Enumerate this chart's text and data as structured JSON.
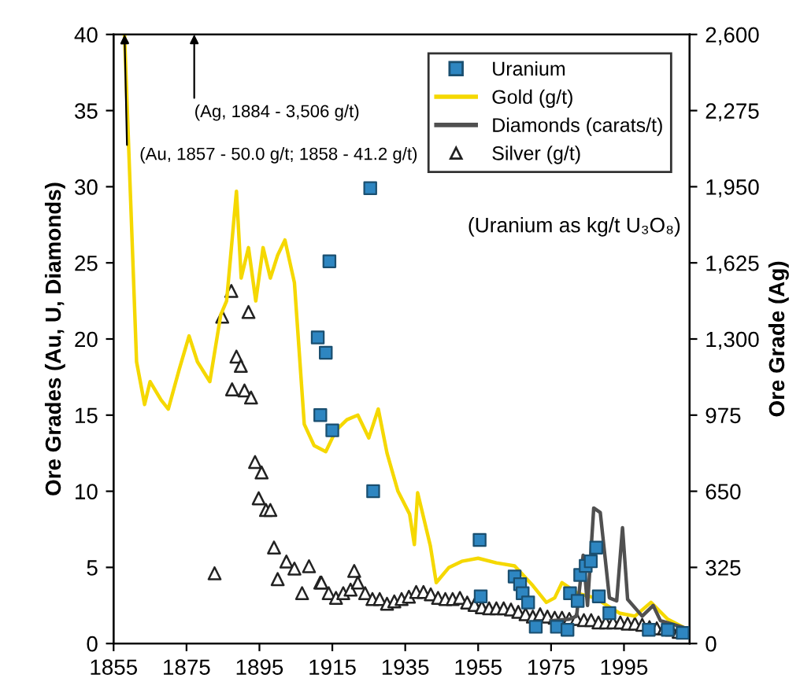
{
  "chart_data": {
    "type": "line",
    "xlabel": null,
    "ylabel": "Ore Grades (Au, U, Diamonds)",
    "y2label": "Ore Grade (Ag)",
    "xlim": [
      1855,
      2013
    ],
    "xticks": [
      1855,
      1875,
      1895,
      1915,
      1935,
      1955,
      1975,
      1995
    ],
    "ylim": [
      0,
      40
    ],
    "yticks": [
      0,
      5,
      10,
      15,
      20,
      25,
      30,
      35,
      40
    ],
    "y2lim": [
      0,
      2600
    ],
    "y2ticks": [
      0,
      {
        "value": 325,
        "label": "325"
      },
      {
        "value": 650,
        "label": "650"
      },
      {
        "value": 975,
        "label": "975"
      },
      {
        "value": 1300,
        "label": "1,300"
      },
      {
        "value": 1625,
        "label": "1,625"
      },
      {
        "value": 1950,
        "label": "1,950"
      },
      {
        "value": 2275,
        "label": "2,275"
      },
      {
        "value": 2600,
        "label": "2,600"
      }
    ],
    "legend": "top right",
    "grid": false,
    "annotations": [
      "(Ag, 1884 - 3,506 g/t)",
      {
        "text": "(Au, 1857 - 50.0 g/t; 1858 - 41.2 g/t)",
        "x": 1858,
        "y": 40
      },
      "(Uranium as kg/t U₃O₈)"
    ],
    "series": [
      {
        "name": "Uranium",
        "type": "scatter",
        "marker": "square",
        "color": "#2e86c1",
        "x": [
          1925.4,
          1914.2,
          1911,
          1913.2,
          1911.7,
          1915,
          1926.2,
          1955.4,
          1955.7,
          1965,
          1966.5,
          1967.2,
          1968.7,
          1970.8,
          1976.6,
          1979.5,
          1980.2,
          1982.3,
          1983,
          1984.5,
          1985.9,
          1987.4,
          1988.1,
          1991,
          2001.8,
          2007,
          2011.1
        ],
        "values": [
          29.9,
          25.1,
          20.1,
          19.1,
          15.0,
          14.0,
          10.0,
          6.8,
          3.1,
          4.4,
          3.9,
          3.3,
          2.7,
          1.1,
          1.1,
          0.9,
          3.3,
          2.8,
          4.5,
          5.1,
          5.4,
          6.3,
          3.1,
          2.0,
          0.9,
          0.9,
          0.7
        ]
      },
      {
        "name": "Gold (g/t)",
        "color": "#f5d800",
        "x": [
          1858,
          1861.3,
          1863.5,
          1865,
          1868,
          1870,
          1873,
          1875.7,
          1878,
          1881.4,
          1884.4,
          1886,
          1888.7,
          1890,
          1892,
          1894,
          1896,
          1898,
          1900,
          1902,
          1904.6,
          1907.3,
          1910,
          1913.2,
          1916,
          1919,
          1922,
          1925,
          1927.6,
          1930,
          1933,
          1936.2,
          1937.5,
          1938.4,
          1941.9,
          1943.5,
          1947,
          1950.5,
          1955,
          1960,
          1965,
          1970,
          1973.7,
          1976,
          1978,
          1982.3,
          1987,
          1993.7,
          1998,
          2002.4,
          2007,
          2012.6
        ],
        "values": [
          40,
          18.5,
          15.7,
          17.2,
          16.0,
          15.4,
          18.0,
          20.2,
          18.5,
          17.2,
          21.6,
          22.5,
          29.7,
          24.0,
          26.0,
          22.5,
          26.0,
          24.0,
          25.5,
          26.5,
          23.7,
          14.4,
          13.0,
          12.6,
          14.0,
          14.7,
          15.0,
          13.5,
          15.4,
          12.5,
          10.0,
          8.5,
          6.5,
          9.9,
          6.4,
          4.0,
          5.0,
          5.4,
          5.6,
          5.3,
          5.1,
          3.8,
          2.7,
          3.0,
          4.0,
          3.3,
          3.0,
          2.0,
          1.8,
          2.7,
          1.6,
          0.9
        ]
      },
      {
        "name": "Diamonds (carats/t)",
        "color": "#505050",
        "x": [
          1975,
          1980,
          1982,
          1983.8,
          1985,
          1986.7,
          1988.5,
          1991,
          1993,
          1994.6,
          1996,
          2000,
          2003,
          2005,
          2008,
          2012
        ],
        "values": [
          1.5,
          1.6,
          1.8,
          5.8,
          2.5,
          8.9,
          8.6,
          3.0,
          2.8,
          7.6,
          2.9,
          1.8,
          2.5,
          1.5,
          1.3,
          1.0
        ]
      },
      {
        "name": "Silver (g/t)",
        "type": "scatter",
        "marker": "triangle",
        "color": "#222222",
        "axis": "y2",
        "x": [
          1887.3,
          1884.8,
          1892,
          1888.7,
          1889.9,
          1887.5,
          1890.9,
          1892.7,
          1893.8,
          1895.6,
          1894.8,
          1896.8,
          1898,
          1882.7,
          1899,
          1900,
          1902.4,
          1904.6,
          1906.7,
          1908.6,
          1911.7,
          1921,
          1912,
          1914,
          1916,
          1918,
          1920,
          1922,
          1924,
          1926,
          1928,
          1930,
          1932,
          1934,
          1936,
          1938,
          1940,
          1942,
          1944,
          1946,
          1948,
          1950,
          1952,
          1954,
          1956,
          1958,
          1960,
          1962,
          1964,
          1966,
          1968,
          1970,
          1972,
          1974,
          1976,
          1978,
          1980,
          1982,
          1984,
          1986,
          1988,
          1990,
          1992,
          1994,
          1996,
          1998,
          2000,
          2002,
          2004,
          2006,
          2008,
          2010
        ],
        "values": [
          1505,
          1395,
          1415,
          1225,
          1185,
          1085,
          1080,
          1050,
          775,
          730,
          620,
          570,
          570,
          300,
          410,
          275,
          350,
          320,
          215,
          330,
          260,
          310,
          260,
          215,
          195,
          215,
          230,
          260,
          215,
          190,
          190,
          170,
          180,
          190,
          200,
          220,
          220,
          210,
          195,
          190,
          190,
          195,
          175,
          165,
          155,
          150,
          150,
          150,
          145,
          135,
          125,
          115,
          125,
          115,
          110,
          110,
          105,
          105,
          100,
          100,
          90,
          90,
          90,
          90,
          85,
          85,
          80,
          70,
          65,
          65,
          60,
          50
        ]
      }
    ]
  }
}
